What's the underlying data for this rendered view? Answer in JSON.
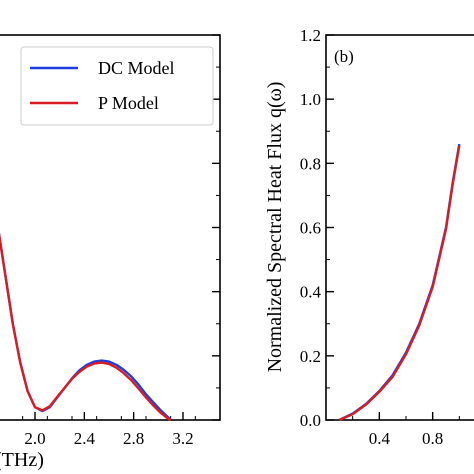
{
  "chart_data": [
    {
      "type": "line",
      "panel": "left (partially visible)",
      "xlabel": "(THz)",
      "ylabel": "",
      "xlim": [
        1.7,
        3.5
      ],
      "ylim": [
        0,
        1.2
      ],
      "x_ticks": [
        2.0,
        2.4,
        2.8,
        3.2
      ],
      "x_tick_labels": [
        "2.0",
        "2.4",
        "2.8",
        "3.2"
      ],
      "y_ticks": [
        0,
        0.2,
        0.4,
        0.6,
        0.8,
        1.0,
        1.2
      ],
      "legend": {
        "position": "top-right",
        "entries": [
          {
            "label": "DC Model",
            "color": "#1f3fdc"
          },
          {
            "label": "P Model",
            "color": "#d81c24"
          }
        ]
      },
      "series": [
        {
          "name": "DC Model",
          "color": "#1f3fdc",
          "x": [
            1.7,
            1.76,
            1.82,
            1.88,
            1.94,
            2.0,
            2.06,
            2.12,
            2.18,
            2.24,
            2.3,
            2.36,
            2.42,
            2.48,
            2.54,
            2.6,
            2.66,
            2.72,
            2.78,
            2.84,
            2.9,
            2.96,
            3.02,
            3.08,
            3.1
          ],
          "y": [
            0.6,
            0.45,
            0.3,
            0.18,
            0.09,
            0.04,
            0.028,
            0.04,
            0.07,
            0.1,
            0.13,
            0.155,
            0.172,
            0.182,
            0.185,
            0.182,
            0.172,
            0.156,
            0.136,
            0.11,
            0.08,
            0.055,
            0.03,
            0.008,
            0.0
          ]
        },
        {
          "name": "P Model",
          "color": "#d81c24",
          "x": [
            1.7,
            1.76,
            1.82,
            1.88,
            1.94,
            2.0,
            2.06,
            2.12,
            2.18,
            2.24,
            2.3,
            2.36,
            2.42,
            2.48,
            2.54,
            2.6,
            2.66,
            2.72,
            2.78,
            2.84,
            2.9,
            2.96,
            3.02,
            3.08,
            3.1
          ],
          "y": [
            0.6,
            0.45,
            0.3,
            0.18,
            0.09,
            0.04,
            0.03,
            0.043,
            0.072,
            0.1,
            0.128,
            0.15,
            0.166,
            0.176,
            0.179,
            0.175,
            0.163,
            0.146,
            0.124,
            0.098,
            0.07,
            0.045,
            0.022,
            0.004,
            0.0
          ]
        }
      ]
    },
    {
      "type": "line",
      "panel": "right (partially visible)",
      "annotation": "(b)",
      "xlabel": "",
      "ylabel": "Normalized Spectral Heat Flux q(ω)",
      "xlim": [
        0.0,
        1.2
      ],
      "ylim": [
        0,
        1.2
      ],
      "x_ticks": [
        0.4,
        0.8
      ],
      "x_tick_labels": [
        "0.4",
        "0.8"
      ],
      "y_ticks": [
        0.0,
        0.2,
        0.4,
        0.6,
        0.8,
        1.0,
        1.2
      ],
      "y_tick_labels": [
        "0.0",
        "0.2",
        "0.4",
        "0.6",
        "0.8",
        "1.0",
        "1.2"
      ],
      "series": [
        {
          "name": "DC Model",
          "color": "#1f3fdc",
          "x": [
            0.1,
            0.2,
            0.3,
            0.4,
            0.5,
            0.6,
            0.7,
            0.8,
            0.9,
            0.95,
            1.0
          ],
          "y": [
            0.0,
            0.02,
            0.05,
            0.09,
            0.14,
            0.21,
            0.3,
            0.42,
            0.6,
            0.74,
            0.86
          ]
        },
        {
          "name": "P Model",
          "color": "#d81c24",
          "x": [
            0.1,
            0.2,
            0.3,
            0.4,
            0.5,
            0.6,
            0.7,
            0.8,
            0.9,
            0.95,
            1.0
          ],
          "y": [
            0.0,
            0.018,
            0.048,
            0.088,
            0.135,
            0.205,
            0.295,
            0.415,
            0.595,
            0.735,
            0.855
          ]
        }
      ]
    }
  ]
}
